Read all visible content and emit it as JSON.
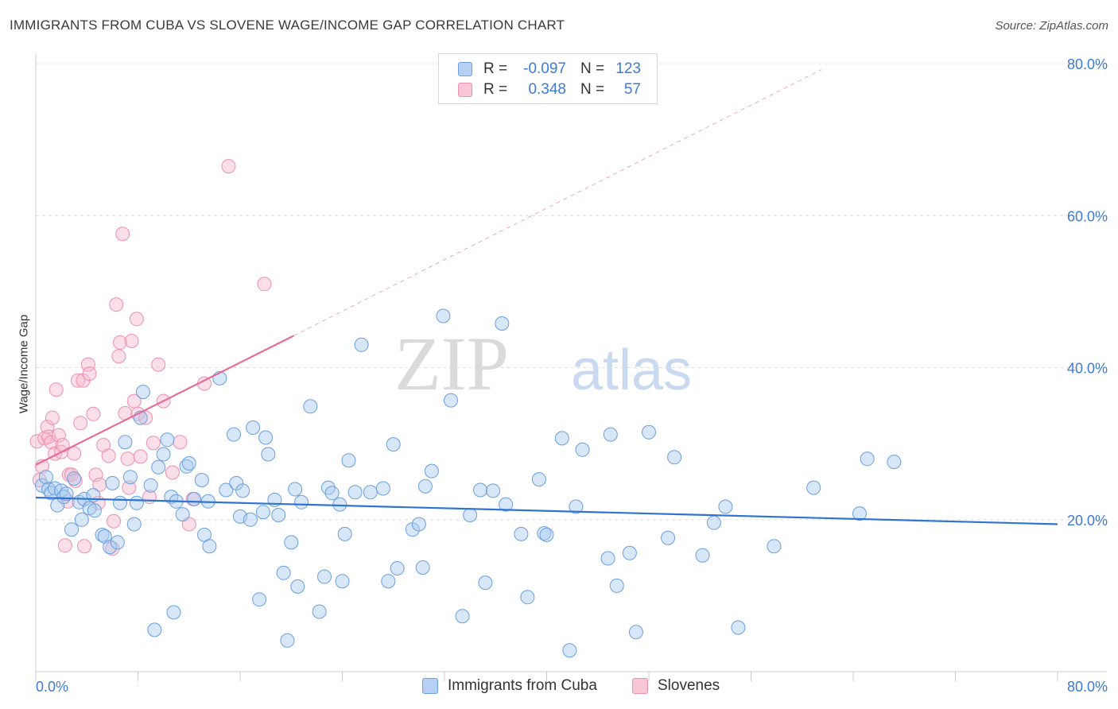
{
  "title": "IMMIGRANTS FROM CUBA VS SLOVENE WAGE/INCOME GAP CORRELATION CHART",
  "source": "Source: ZipAtlas.com",
  "watermark": {
    "zip": "ZIP",
    "atlas": "atlas"
  },
  "legend": {
    "rows": [
      {
        "r_label": "R =",
        "r_value": "-0.097",
        "n_label": "N =",
        "n_value": "123"
      },
      {
        "r_label": "R =",
        "r_value": "0.348",
        "n_label": "N =",
        "n_value": "57"
      }
    ]
  },
  "bottom_legend": [
    {
      "label": "Immigrants from Cuba"
    },
    {
      "label": "Slovenes"
    }
  ],
  "colors": {
    "blue_fill": "#a9c9f0",
    "blue_stroke": "#6a9fe0",
    "blue_line": "#2f74d0",
    "pink_fill": "#f6b8cb",
    "pink_stroke": "#ee8fb0",
    "pink_line": "#e46c95",
    "tick": "#3d7bd6",
    "grid": "#dddddd"
  },
  "chart_data": {
    "type": "scatter",
    "title": "IMMIGRANTS FROM CUBA VS SLOVENE WAGE/INCOME GAP CORRELATION CHART",
    "xlabel": "",
    "ylabel": "Wage/Income Gap",
    "xlim": [
      0,
      80
    ],
    "ylim": [
      0,
      80
    ],
    "x_tick_labels": [
      "0.0%",
      "80.0%"
    ],
    "y_ticks": [
      20,
      40,
      60,
      80
    ],
    "y_tick_labels": [
      "20.0%",
      "40.0%",
      "60.0%",
      "80.0%"
    ],
    "grid": true,
    "series": [
      {
        "name": "Immigrants from Cuba",
        "color": "#a9c9f0",
        "trend": {
          "x0": 0,
          "y0": 22.9,
          "x1": 80,
          "y1": 19.4,
          "style": "solid"
        },
        "points": [
          [
            0.5,
            24.5
          ],
          [
            0.8,
            25.6
          ],
          [
            1.0,
            24.0
          ],
          [
            1.2,
            23.5
          ],
          [
            1.5,
            24.1
          ],
          [
            1.7,
            21.9
          ],
          [
            2.0,
            23.8
          ],
          [
            2.2,
            23.0
          ],
          [
            2.4,
            23.4
          ],
          [
            2.8,
            18.7
          ],
          [
            3.0,
            25.4
          ],
          [
            3.4,
            22.3
          ],
          [
            3.6,
            20.0
          ],
          [
            3.8,
            22.7
          ],
          [
            4.2,
            21.5
          ],
          [
            4.5,
            23.2
          ],
          [
            4.6,
            21.2
          ],
          [
            5.2,
            18.0
          ],
          [
            5.4,
            17.8
          ],
          [
            5.8,
            16.4
          ],
          [
            6.0,
            24.8
          ],
          [
            6.4,
            17.0
          ],
          [
            6.6,
            22.2
          ],
          [
            7.0,
            30.2
          ],
          [
            7.4,
            25.6
          ],
          [
            7.7,
            19.4
          ],
          [
            7.9,
            22.2
          ],
          [
            8.2,
            33.4
          ],
          [
            8.4,
            36.8
          ],
          [
            9.0,
            24.5
          ],
          [
            9.3,
            5.5
          ],
          [
            9.6,
            26.9
          ],
          [
            10.0,
            28.6
          ],
          [
            10.3,
            30.5
          ],
          [
            10.6,
            23.0
          ],
          [
            10.8,
            7.8
          ],
          [
            11.0,
            22.4
          ],
          [
            11.5,
            20.7
          ],
          [
            11.8,
            27.0
          ],
          [
            12.0,
            27.4
          ],
          [
            12.4,
            22.7
          ],
          [
            13.0,
            25.2
          ],
          [
            13.2,
            18.0
          ],
          [
            13.5,
            22.4
          ],
          [
            13.6,
            16.5
          ],
          [
            14.4,
            38.6
          ],
          [
            14.9,
            23.9
          ],
          [
            15.5,
            31.2
          ],
          [
            15.7,
            24.8
          ],
          [
            16.0,
            20.4
          ],
          [
            16.2,
            23.8
          ],
          [
            16.8,
            20.0
          ],
          [
            17.0,
            32.1
          ],
          [
            17.5,
            9.5
          ],
          [
            17.8,
            21.0
          ],
          [
            18.0,
            30.8
          ],
          [
            18.2,
            28.6
          ],
          [
            18.7,
            22.6
          ],
          [
            19.0,
            20.6
          ],
          [
            19.4,
            13.0
          ],
          [
            19.7,
            4.1
          ],
          [
            20.0,
            17.0
          ],
          [
            20.3,
            24.0
          ],
          [
            20.5,
            11.2
          ],
          [
            20.8,
            22.3
          ],
          [
            21.5,
            34.9
          ],
          [
            22.2,
            7.9
          ],
          [
            22.6,
            12.5
          ],
          [
            22.9,
            24.2
          ],
          [
            23.2,
            23.5
          ],
          [
            23.8,
            22.0
          ],
          [
            24.0,
            11.9
          ],
          [
            24.2,
            18.1
          ],
          [
            24.5,
            27.8
          ],
          [
            25.0,
            23.6
          ],
          [
            25.5,
            43.0
          ],
          [
            26.2,
            23.6
          ],
          [
            27.2,
            24.1
          ],
          [
            27.6,
            11.9
          ],
          [
            28.0,
            29.9
          ],
          [
            28.3,
            13.6
          ],
          [
            29.5,
            18.7
          ],
          [
            30.0,
            19.4
          ],
          [
            30.3,
            13.7
          ],
          [
            30.5,
            24.4
          ],
          [
            31.0,
            26.4
          ],
          [
            31.9,
            46.8
          ],
          [
            32.5,
            35.7
          ],
          [
            33.4,
            7.3
          ],
          [
            34.0,
            20.6
          ],
          [
            34.8,
            23.9
          ],
          [
            35.2,
            11.7
          ],
          [
            35.8,
            23.8
          ],
          [
            36.5,
            45.8
          ],
          [
            36.8,
            22.0
          ],
          [
            38.0,
            18.1
          ],
          [
            38.5,
            9.8
          ],
          [
            39.4,
            25.3
          ],
          [
            39.8,
            18.2
          ],
          [
            40.0,
            18.0
          ],
          [
            41.2,
            30.7
          ],
          [
            41.8,
            2.8
          ],
          [
            42.3,
            21.7
          ],
          [
            42.8,
            29.2
          ],
          [
            44.8,
            14.9
          ],
          [
            45.0,
            31.2
          ],
          [
            45.5,
            11.3
          ],
          [
            46.5,
            15.6
          ],
          [
            47.0,
            5.2
          ],
          [
            48.0,
            31.5
          ],
          [
            49.5,
            17.6
          ],
          [
            50.0,
            28.2
          ],
          [
            52.2,
            15.3
          ],
          [
            53.1,
            19.6
          ],
          [
            54.0,
            21.7
          ],
          [
            55.0,
            5.8
          ],
          [
            57.8,
            16.5
          ],
          [
            60.9,
            24.2
          ],
          [
            64.5,
            20.8
          ],
          [
            65.1,
            28.0
          ],
          [
            67.2,
            27.6
          ]
        ]
      },
      {
        "name": "Slovenes",
        "color": "#f6b8cb",
        "trend": {
          "x0": 0,
          "y0": 27.2,
          "x1": 20.2,
          "y1": 44.2,
          "dashed_to": {
            "x": 61.5,
            "y": 79.2
          },
          "style": "solid+dashed"
        },
        "points": [
          [
            0.1,
            30.3
          ],
          [
            0.3,
            25.2
          ],
          [
            0.5,
            27.0
          ],
          [
            0.7,
            30.7
          ],
          [
            0.9,
            32.2
          ],
          [
            1.0,
            30.9
          ],
          [
            1.2,
            30.2
          ],
          [
            1.3,
            33.4
          ],
          [
            1.5,
            28.7
          ],
          [
            1.6,
            37.1
          ],
          [
            1.8,
            31.1
          ],
          [
            2.0,
            28.9
          ],
          [
            2.1,
            29.8
          ],
          [
            2.3,
            16.6
          ],
          [
            2.5,
            22.4
          ],
          [
            2.6,
            25.9
          ],
          [
            2.8,
            25.9
          ],
          [
            3.0,
            28.7
          ],
          [
            3.1,
            25.1
          ],
          [
            3.3,
            38.3
          ],
          [
            3.5,
            32.7
          ],
          [
            3.7,
            38.3
          ],
          [
            3.8,
            16.5
          ],
          [
            4.1,
            40.4
          ],
          [
            4.2,
            39.2
          ],
          [
            4.5,
            33.9
          ],
          [
            4.7,
            25.9
          ],
          [
            4.9,
            22.2
          ],
          [
            5.0,
            24.6
          ],
          [
            5.3,
            29.8
          ],
          [
            5.7,
            28.4
          ],
          [
            6.0,
            16.2
          ],
          [
            6.1,
            19.8
          ],
          [
            6.3,
            48.3
          ],
          [
            6.5,
            41.5
          ],
          [
            6.6,
            43.3
          ],
          [
            6.8,
            57.6
          ],
          [
            7.0,
            34.0
          ],
          [
            7.2,
            28.0
          ],
          [
            7.3,
            24.2
          ],
          [
            7.5,
            43.5
          ],
          [
            7.7,
            35.6
          ],
          [
            7.9,
            46.4
          ],
          [
            8.0,
            33.9
          ],
          [
            8.2,
            28.3
          ],
          [
            8.6,
            33.4
          ],
          [
            8.9,
            23.0
          ],
          [
            9.2,
            30.1
          ],
          [
            9.6,
            40.4
          ],
          [
            10.0,
            35.6
          ],
          [
            10.7,
            26.2
          ],
          [
            11.3,
            30.2
          ],
          [
            12.0,
            19.4
          ],
          [
            12.3,
            22.7
          ],
          [
            13.2,
            37.9
          ],
          [
            15.1,
            66.5
          ],
          [
            17.9,
            51.0
          ]
        ]
      }
    ]
  }
}
